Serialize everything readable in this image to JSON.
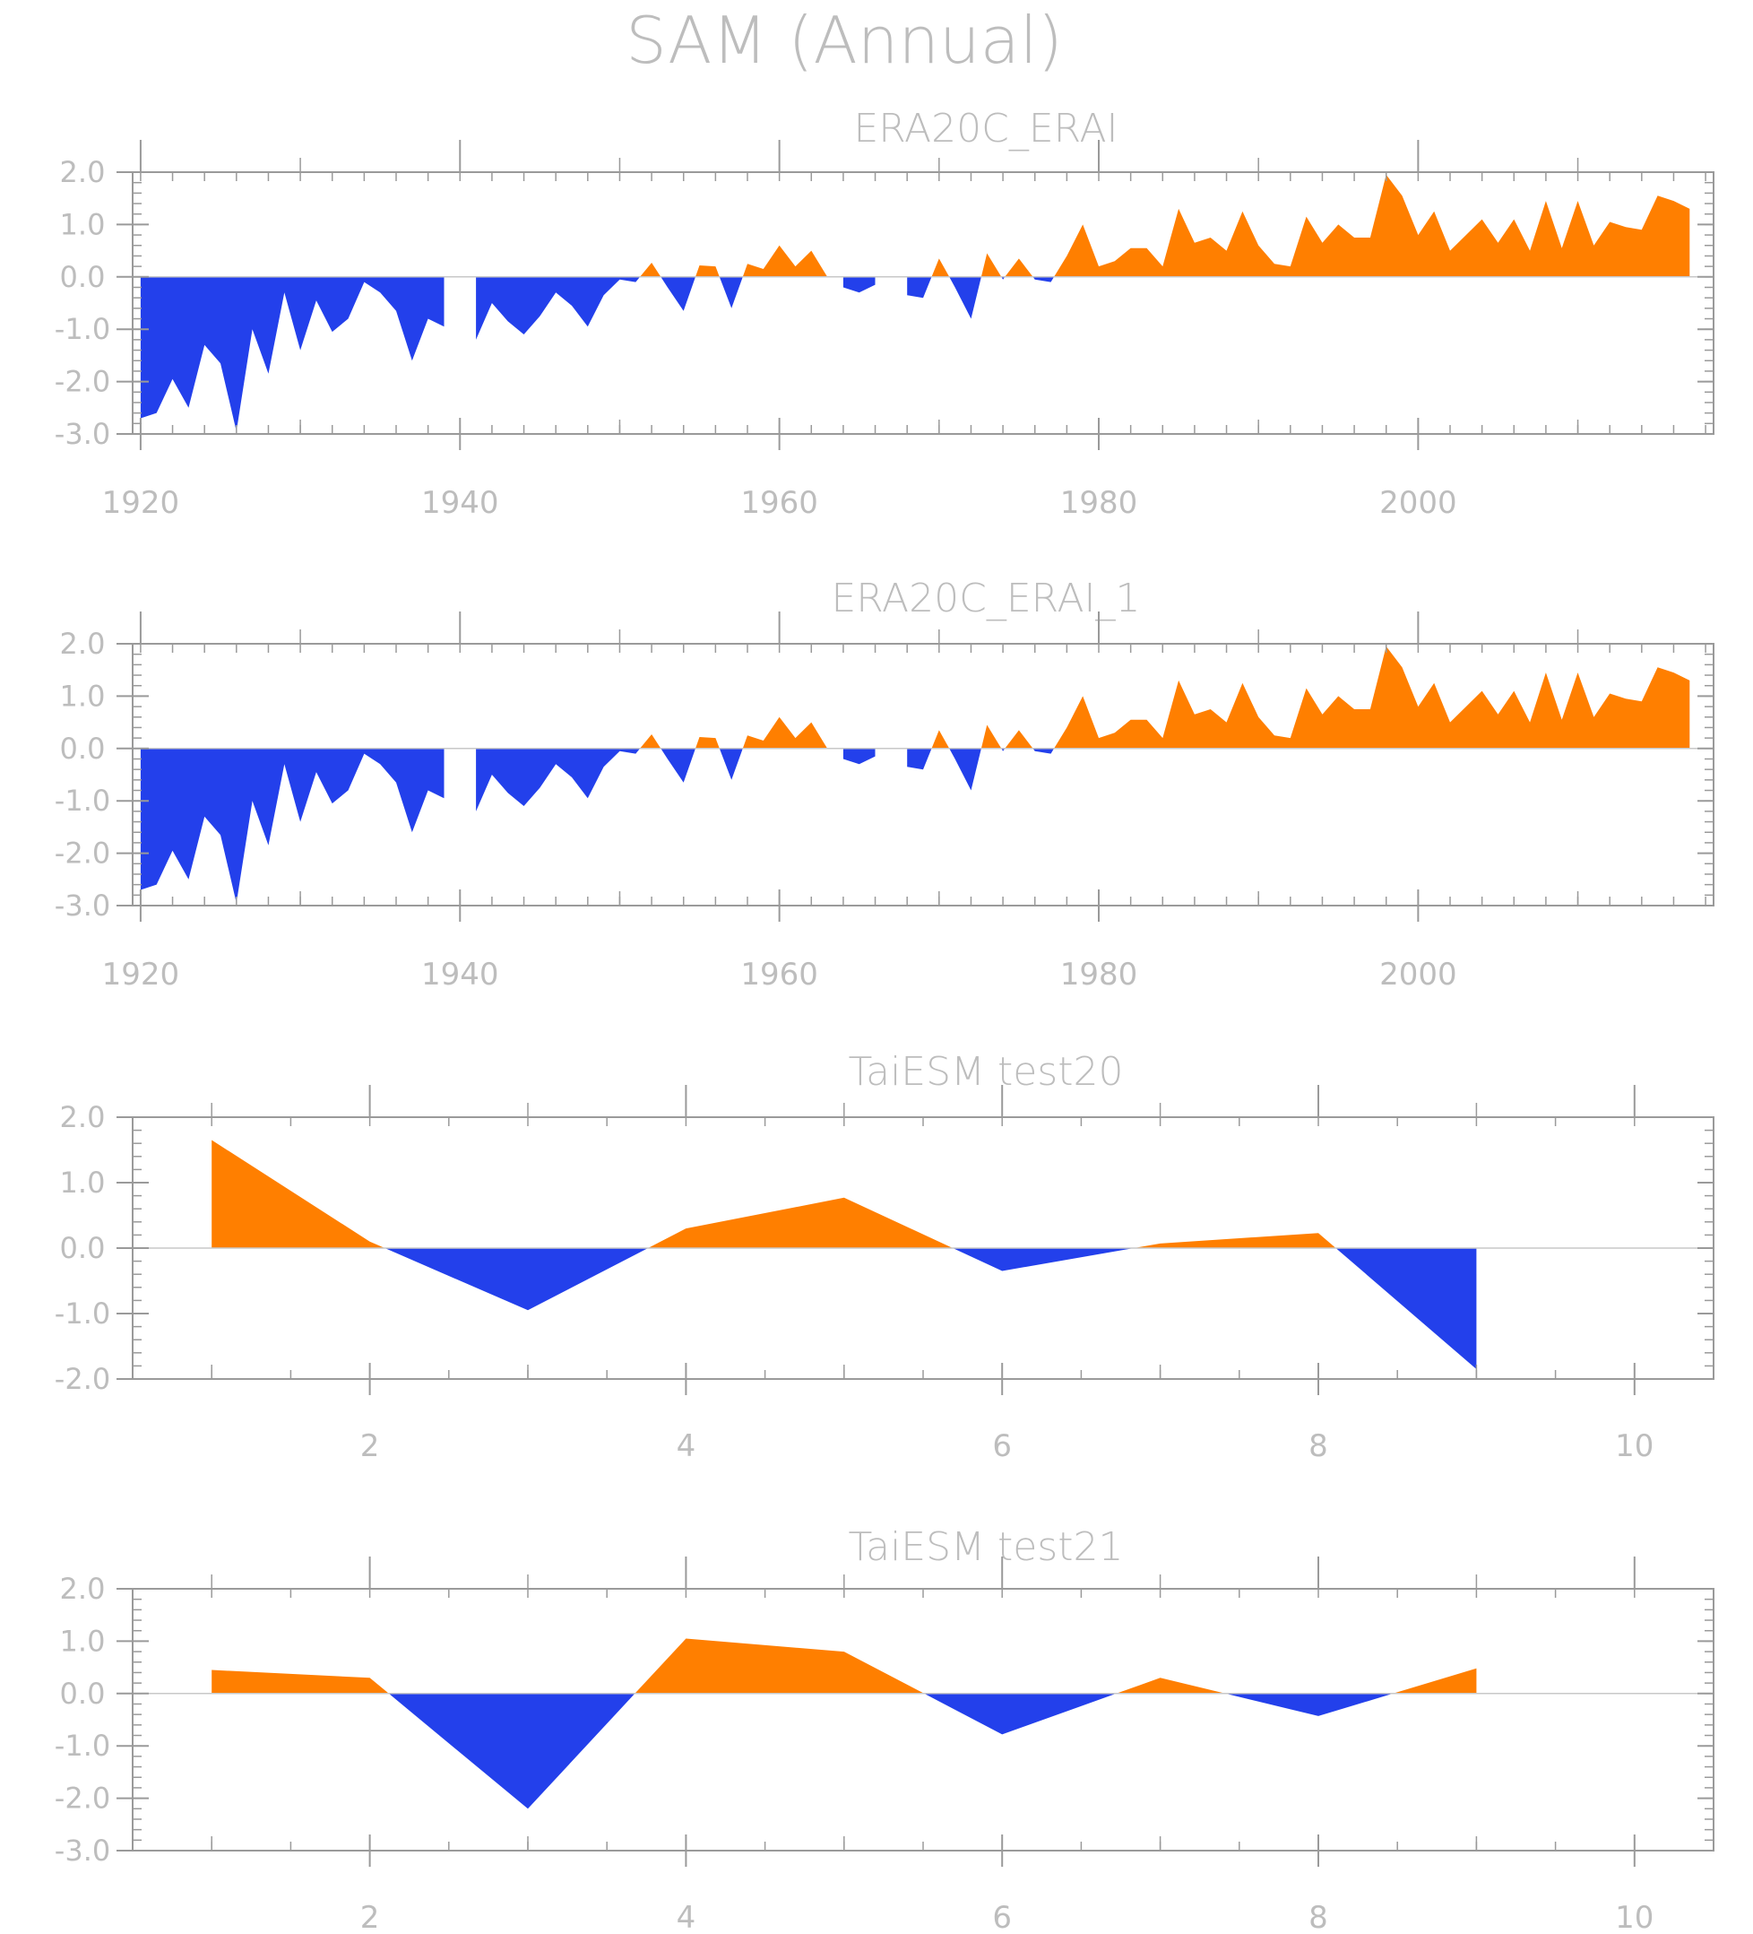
{
  "title": "SAM (Annual)",
  "colors": {
    "positive": "#ff7f00",
    "negative": "#2340eb",
    "frame": "#9a9a9a",
    "text": "#bdbdbd",
    "zero_line": "#c8c8c8"
  },
  "chart_data": [
    {
      "type": "area",
      "title": "ERA20C_ERAI",
      "x_ticks": [
        "1920",
        "1940",
        "1960",
        "1980",
        "2000"
      ],
      "x_tick_values": [
        1920,
        1940,
        1960,
        1980,
        2000
      ],
      "xlim": [
        1919.5,
        2018.5
      ],
      "y_ticks": [
        "2.0",
        "1.0",
        "0.0",
        "-1.0",
        "-2.0",
        "-3.0"
      ],
      "ylim": [
        -3.0,
        2.0
      ],
      "x_minor_step": 2,
      "y_minor_step": 0.2,
      "x": [
        1920,
        1921,
        1922,
        1923,
        1924,
        1925,
        1926,
        1927,
        1928,
        1929,
        1930,
        1931,
        1932,
        1933,
        1934,
        1935,
        1936,
        1937,
        1938,
        1939,
        1940,
        1941,
        1942,
        1943,
        1944,
        1945,
        1946,
        1947,
        1948,
        1949,
        1950,
        1951,
        1952,
        1953,
        1954,
        1955,
        1956,
        1957,
        1958,
        1959,
        1960,
        1961,
        1962,
        1963,
        1964,
        1965,
        1966,
        1967,
        1968,
        1969,
        1970,
        1971,
        1972,
        1973,
        1974,
        1975,
        1976,
        1977,
        1978,
        1979,
        1980,
        1981,
        1982,
        1983,
        1984,
        1985,
        1986,
        1987,
        1988,
        1989,
        1990,
        1991,
        1992,
        1993,
        1994,
        1995,
        1996,
        1997,
        1998,
        1999,
        2000,
        2001,
        2002,
        2003,
        2004,
        2005,
        2006,
        2007,
        2008,
        2009,
        2010,
        2011,
        2012,
        2013,
        2014,
        2015,
        2016,
        2017
      ],
      "values": [
        -2.7,
        -2.6,
        -1.95,
        -2.5,
        -1.3,
        -1.65,
        -2.95,
        -1.0,
        -1.85,
        -0.3,
        -1.4,
        -0.45,
        -1.05,
        -0.8,
        -0.1,
        -0.3,
        -0.65,
        -1.6,
        -0.8,
        -0.95,
        0.0,
        -1.2,
        -0.5,
        -0.85,
        -1.1,
        -0.75,
        -0.3,
        -0.55,
        -0.95,
        -0.35,
        -0.05,
        -0.1,
        0.27,
        -0.2,
        -0.65,
        0.22,
        0.2,
        -0.6,
        0.25,
        0.15,
        0.6,
        0.2,
        0.5,
        0.0,
        -0.2,
        -0.3,
        -0.15,
        0.0,
        -0.35,
        -0.4,
        0.35,
        -0.2,
        -0.8,
        0.45,
        -0.05,
        0.35,
        -0.05,
        -0.1,
        0.4,
        1.0,
        0.2,
        0.3,
        0.55,
        0.55,
        0.2,
        1.3,
        0.65,
        0.75,
        0.5,
        1.25,
        0.6,
        0.25,
        0.2,
        1.15,
        0.65,
        1.0,
        0.75,
        0.75,
        1.95,
        1.55,
        0.8,
        1.25,
        0.5,
        0.8,
        1.1,
        0.65,
        1.1,
        0.5,
        1.45,
        0.55,
        1.45,
        0.6,
        1.05,
        0.95,
        0.9,
        1.55,
        1.45,
        1.3
      ]
    },
    {
      "type": "area",
      "title": "ERA20C_ERAI_1",
      "x_ticks": [
        "1920",
        "1940",
        "1960",
        "1980",
        "2000"
      ],
      "x_tick_values": [
        1920,
        1940,
        1960,
        1980,
        2000
      ],
      "xlim": [
        1919.5,
        2018.5
      ],
      "y_ticks": [
        "2.0",
        "1.0",
        "0.0",
        "-1.0",
        "-2.0",
        "-3.0"
      ],
      "ylim": [
        -3.0,
        2.0
      ],
      "x_minor_step": 2,
      "y_minor_step": 0.2,
      "x": [
        1920,
        1921,
        1922,
        1923,
        1924,
        1925,
        1926,
        1927,
        1928,
        1929,
        1930,
        1931,
        1932,
        1933,
        1934,
        1935,
        1936,
        1937,
        1938,
        1939,
        1940,
        1941,
        1942,
        1943,
        1944,
        1945,
        1946,
        1947,
        1948,
        1949,
        1950,
        1951,
        1952,
        1953,
        1954,
        1955,
        1956,
        1957,
        1958,
        1959,
        1960,
        1961,
        1962,
        1963,
        1964,
        1965,
        1966,
        1967,
        1968,
        1969,
        1970,
        1971,
        1972,
        1973,
        1974,
        1975,
        1976,
        1977,
        1978,
        1979,
        1980,
        1981,
        1982,
        1983,
        1984,
        1985,
        1986,
        1987,
        1988,
        1989,
        1990,
        1991,
        1992,
        1993,
        1994,
        1995,
        1996,
        1997,
        1998,
        1999,
        2000,
        2001,
        2002,
        2003,
        2004,
        2005,
        2006,
        2007,
        2008,
        2009,
        2010,
        2011,
        2012,
        2013,
        2014,
        2015,
        2016,
        2017
      ],
      "values": [
        -2.7,
        -2.6,
        -1.95,
        -2.5,
        -1.3,
        -1.65,
        -2.95,
        -1.0,
        -1.85,
        -0.3,
        -1.4,
        -0.45,
        -1.05,
        -0.8,
        -0.1,
        -0.3,
        -0.65,
        -1.6,
        -0.8,
        -0.95,
        0.0,
        -1.2,
        -0.5,
        -0.85,
        -1.1,
        -0.75,
        -0.3,
        -0.55,
        -0.95,
        -0.35,
        -0.05,
        -0.1,
        0.27,
        -0.2,
        -0.65,
        0.22,
        0.2,
        -0.6,
        0.25,
        0.15,
        0.6,
        0.2,
        0.5,
        0.0,
        -0.2,
        -0.3,
        -0.15,
        0.0,
        -0.35,
        -0.4,
        0.35,
        -0.2,
        -0.8,
        0.45,
        -0.05,
        0.35,
        -0.05,
        -0.1,
        0.4,
        1.0,
        0.2,
        0.3,
        0.55,
        0.55,
        0.2,
        1.3,
        0.65,
        0.75,
        0.5,
        1.25,
        0.6,
        0.25,
        0.2,
        1.15,
        0.65,
        1.0,
        0.75,
        0.75,
        1.95,
        1.55,
        0.8,
        1.25,
        0.5,
        0.8,
        1.1,
        0.65,
        1.1,
        0.5,
        1.45,
        0.55,
        1.45,
        0.6,
        1.05,
        0.95,
        0.9,
        1.55,
        1.45,
        1.3
      ]
    },
    {
      "type": "area",
      "title": "TaiESM test20",
      "x_ticks": [
        "2",
        "4",
        "6",
        "8",
        "10"
      ],
      "x_tick_values": [
        2,
        4,
        6,
        8,
        10
      ],
      "xlim": [
        0.5,
        10.5
      ],
      "y_ticks": [
        "2.0",
        "1.0",
        "0.0",
        "-1.0",
        "-2.0"
      ],
      "ylim": [
        -2.0,
        2.0
      ],
      "x_minor_step": 0.5,
      "y_minor_step": 0.2,
      "x": [
        1,
        2,
        3,
        4,
        5,
        6,
        7,
        8,
        9
      ],
      "values": [
        1.65,
        0.1,
        -0.95,
        0.3,
        0.77,
        -0.35,
        0.07,
        0.23,
        -1.85
      ]
    },
    {
      "type": "area",
      "title": "TaiESM test21",
      "x_ticks": [
        "2",
        "4",
        "6",
        "8",
        "10"
      ],
      "x_tick_values": [
        2,
        4,
        6,
        8,
        10
      ],
      "xlim": [
        0.5,
        10.5
      ],
      "y_ticks": [
        "2.0",
        "1.0",
        "0.0",
        "-1.0",
        "-2.0",
        "-3.0"
      ],
      "ylim": [
        -3.0,
        2.0
      ],
      "x_minor_step": 0.5,
      "y_minor_step": 0.2,
      "x": [
        1,
        2,
        3,
        4,
        5,
        6,
        7,
        8,
        9
      ],
      "values": [
        0.45,
        0.3,
        -2.2,
        1.05,
        0.8,
        -0.78,
        0.3,
        -0.43,
        0.48
      ]
    }
  ]
}
